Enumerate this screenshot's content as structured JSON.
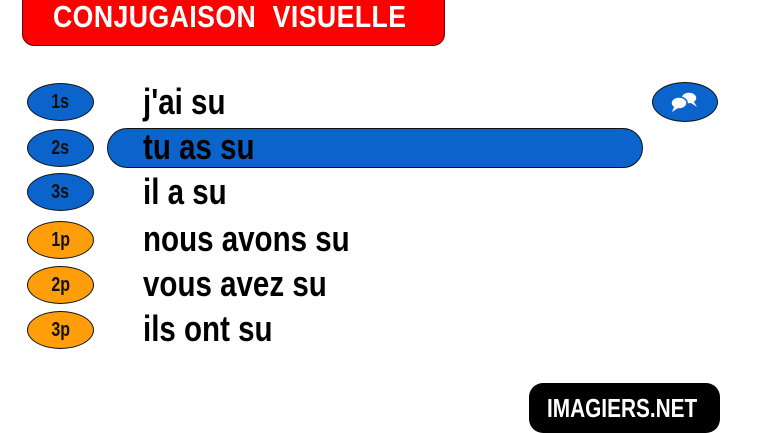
{
  "header": {
    "title": "CONJUGAISON  VISUELLE"
  },
  "rows": [
    {
      "badge": "1s",
      "form": "j'ai su",
      "group": "singular"
    },
    {
      "badge": "2s",
      "form": "tu as su",
      "group": "singular",
      "highlighted": true
    },
    {
      "badge": "3s",
      "form": "il a su",
      "group": "singular"
    },
    {
      "badge": "1p",
      "form": "nous avons su",
      "group": "plural"
    },
    {
      "badge": "2p",
      "form": "vous avez su",
      "group": "plural"
    },
    {
      "badge": "3p",
      "form": "ils ont su",
      "group": "plural"
    }
  ],
  "chat_button": {
    "icon": "speech-bubbles-icon"
  },
  "logo": {
    "text": "IMAGIERS.NET"
  },
  "colors": {
    "title_bg": "#ff0000",
    "singular": "#0a64cc",
    "plural": "#ff9e0a",
    "highlight": "#0a64cc"
  }
}
